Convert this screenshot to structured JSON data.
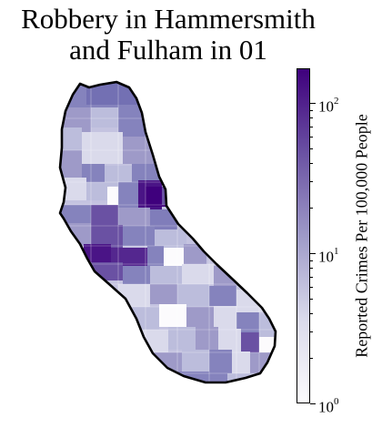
{
  "title": {
    "line1": "Robbery in Hammersmith",
    "line2": "and Fulham in 01"
  },
  "colorbar": {
    "label": "Reported Crimes Per 100,000 People",
    "scale": "log",
    "range": [
      1,
      170
    ],
    "ticks": [
      {
        "base": "10",
        "exp": "0",
        "value": 1
      },
      {
        "base": "10",
        "exp": "1",
        "value": 10
      },
      {
        "base": "10",
        "exp": "2",
        "value": 100
      }
    ],
    "colormap": [
      "#fcfbfd",
      "#dadaeb",
      "#9e9ac8",
      "#6a51a3",
      "#3f007d"
    ]
  }
}
